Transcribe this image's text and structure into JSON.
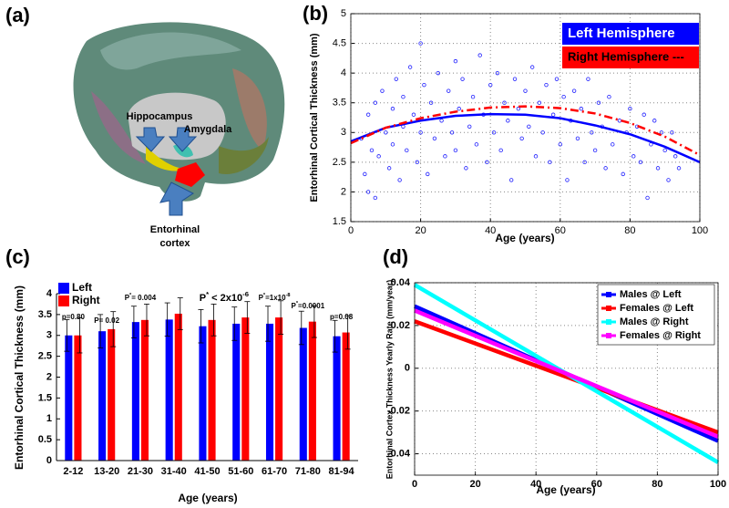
{
  "figure_a": {
    "panel_label": "(a)",
    "labels": [
      "Hippocampus",
      "Amygdala",
      "Entorhinal",
      "cortex"
    ]
  },
  "chart_data": [
    {
      "type": "scatter",
      "panel_label": "(b)",
      "x_label": "Age (years)",
      "y_label": "Entorhinal Cortical Thickness (mm)",
      "xlim": [
        0,
        100
      ],
      "xticks": [
        0,
        20,
        40,
        60,
        80,
        100
      ],
      "ylim": [
        1.5,
        5
      ],
      "yticks": [
        1.5,
        2,
        2.5,
        3,
        3.5,
        4,
        4.5,
        5
      ],
      "grid": true,
      "legend": "upper right",
      "points": {
        "color": "#1f1fff",
        "x": [
          3,
          4,
          5,
          5,
          6,
          7,
          7,
          8,
          9,
          10,
          11,
          12,
          12,
          13,
          14,
          15,
          15,
          16,
          17,
          18,
          19,
          20,
          20,
          21,
          22,
          23,
          24,
          25,
          26,
          27,
          28,
          29,
          30,
          30,
          31,
          32,
          33,
          34,
          35,
          36,
          37,
          38,
          39,
          40,
          41,
          42,
          43,
          44,
          45,
          46,
          47,
          48,
          49,
          50,
          51,
          52,
          53,
          54,
          55,
          56,
          57,
          58,
          59,
          60,
          61,
          62,
          63,
          64,
          65,
          66,
          67,
          68,
          69,
          70,
          71,
          72,
          73,
          74,
          75,
          76,
          77,
          78,
          79,
          80,
          81,
          82,
          83,
          84,
          85,
          86,
          87,
          88,
          89,
          90,
          91,
          92,
          93,
          94
        ],
        "values": [
          2.9,
          2.3,
          2.0,
          3.3,
          2.7,
          1.9,
          3.5,
          2.6,
          3.7,
          3.0,
          2.4,
          3.4,
          2.8,
          3.9,
          2.2,
          3.1,
          3.6,
          2.7,
          4.1,
          3.3,
          2.5,
          4.5,
          3.0,
          3.8,
          2.3,
          3.5,
          2.9,
          4.0,
          3.2,
          2.6,
          3.7,
          3.0,
          4.2,
          2.7,
          3.4,
          3.9,
          2.4,
          3.1,
          3.6,
          2.8,
          4.3,
          3.3,
          2.5,
          3.8,
          3.0,
          4.0,
          2.7,
          3.5,
          3.2,
          2.2,
          3.9,
          3.4,
          2.9,
          3.7,
          3.1,
          4.1,
          2.6,
          3.5,
          3.0,
          3.8,
          2.5,
          3.3,
          3.9,
          2.8,
          3.6,
          2.2,
          3.2,
          3.7,
          2.9,
          3.4,
          2.5,
          3.9,
          3.0,
          2.7,
          3.5,
          3.1,
          2.4,
          3.6,
          2.8,
          4.2,
          3.2,
          2.3,
          3.0,
          3.4,
          2.6,
          3.1,
          2.5,
          3.3,
          1.9,
          2.8,
          3.2,
          2.4,
          3.0,
          2.7,
          2.2,
          3.0,
          2.6,
          2.4
        ]
      },
      "series": [
        {
          "name": "Left Hemisphere",
          "color": "#0000ff",
          "style": "solid",
          "x": [
            0,
            10,
            20,
            30,
            40,
            50,
            60,
            70,
            80,
            90,
            100
          ],
          "values": [
            2.85,
            3.08,
            3.2,
            3.28,
            3.31,
            3.3,
            3.24,
            3.12,
            2.97,
            2.76,
            2.5
          ]
        },
        {
          "name": "Right Hemisphere ---",
          "color": "#ff0000",
          "style": "dashed",
          "x": [
            0,
            10,
            20,
            30,
            40,
            50,
            60,
            70,
            80,
            90,
            100
          ],
          "values": [
            2.82,
            3.08,
            3.24,
            3.35,
            3.42,
            3.44,
            3.41,
            3.32,
            3.16,
            2.93,
            2.62
          ]
        }
      ]
    },
    {
      "type": "bar",
      "panel_label": "(c)",
      "x_label": "Age (years)",
      "y_label": "Entorhinal Cortical Thickness (mm)",
      "categories": [
        "2-12",
        "13-20",
        "21-30",
        "31-40",
        "41-50",
        "51-60",
        "61-70",
        "71-80",
        "81-94"
      ],
      "ylim": [
        0,
        4
      ],
      "yticks": [
        0,
        0.5,
        1,
        1.5,
        2,
        2.5,
        3,
        3.5,
        4
      ],
      "grid": false,
      "legend": "upper left",
      "series": [
        {
          "name": "Left",
          "color": "#0000ff",
          "values": [
            3.0,
            3.1,
            3.32,
            3.38,
            3.22,
            3.28,
            3.28,
            3.18,
            2.98
          ],
          "errors": [
            0.38,
            0.4,
            0.38,
            0.4,
            0.4,
            0.4,
            0.42,
            0.4,
            0.38
          ]
        },
        {
          "name": "Right",
          "color": "#ff0000",
          "values": [
            3.0,
            3.15,
            3.37,
            3.52,
            3.37,
            3.43,
            3.43,
            3.33,
            3.07
          ],
          "errors": [
            0.42,
            0.42,
            0.38,
            0.38,
            0.38,
            0.38,
            0.4,
            0.38,
            0.4
          ]
        }
      ],
      "annotations": [
        {
          "parts": [
            {
              "text": "p=0.80"
            }
          ]
        },
        {
          "parts": [
            {
              "text": "P= 0.02"
            }
          ]
        },
        {
          "parts": [
            {
              "text": "P"
            },
            {
              "text": "*",
              "sup": true
            },
            {
              "text": "= 0.004"
            }
          ]
        },
        {
          "parts": [
            {
              "text": "P"
            },
            {
              "text": "*",
              "sup": true
            },
            {
              "text": " < 2x10"
            },
            {
              "text": "-6",
              "sup": true
            }
          ]
        },
        {
          "parts": [
            {
              "text": "P"
            },
            {
              "text": "*",
              "sup": true
            },
            {
              "text": "=1x10"
            },
            {
              "text": "-8",
              "sup": true
            }
          ]
        },
        {
          "parts": [
            {
              "text": "P"
            },
            {
              "text": "*",
              "sup": true
            },
            {
              "text": "=0.0001"
            }
          ]
        },
        {
          "parts": [
            {
              "text": "p=0.08"
            }
          ]
        }
      ]
    },
    {
      "type": "line",
      "panel_label": "(d)",
      "x_label": "Age (years)",
      "y_label": "Entorhinal Cortex Thickness Yearly Rate (mm/year)",
      "xlim": [
        0,
        100
      ],
      "xticks": [
        0,
        20,
        40,
        60,
        80,
        100
      ],
      "ylim": [
        -0.05,
        0.04
      ],
      "yticks": [
        -0.04,
        -0.02,
        0,
        0.02,
        0.04
      ],
      "grid": true,
      "legend": "upper right",
      "series": [
        {
          "name": "Males @ Left",
          "color": "#0000ff",
          "x": [
            0,
            100
          ],
          "values": [
            0.029,
            -0.034
          ]
        },
        {
          "name": "Females @ Left",
          "color": "#ff0000",
          "x": [
            0,
            100
          ],
          "values": [
            0.022,
            -0.03
          ]
        },
        {
          "name": "Males @ Right",
          "color": "#00ffff",
          "x": [
            0,
            100
          ],
          "values": [
            0.039,
            -0.044
          ]
        },
        {
          "name": "Females @ Right",
          "color": "#ff00ff",
          "x": [
            0,
            100
          ],
          "values": [
            0.027,
            -0.032
          ]
        }
      ]
    }
  ]
}
